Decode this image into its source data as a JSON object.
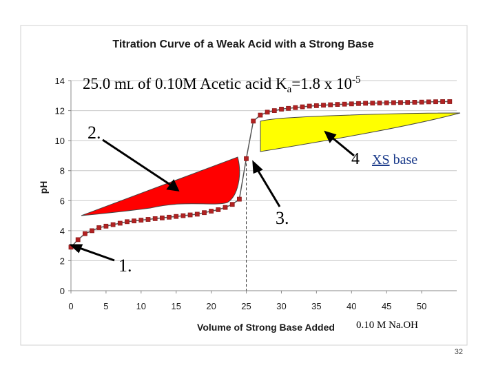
{
  "chart_data": {
    "type": "line",
    "title": "Titration Curve of a Weak Acid with a Strong Base",
    "subtitle": "25.0 mL of 0.10M Acetic acid Ka=1.8 x 10-5",
    "subtitle_parts": {
      "main": "25.0 m",
      "l": "L",
      "mid": " of 0.10M Acetic acid K",
      "sub": "a",
      "eq": "=1.8 x 10",
      "sup": "-5"
    },
    "xlabel": "Volume of Strong Base Added",
    "ylabel": "pH",
    "xlim": [
      0,
      55
    ],
    "ylim": [
      0,
      14
    ],
    "xticks": [
      0,
      5,
      10,
      15,
      20,
      25,
      30,
      35,
      40,
      45,
      50
    ],
    "yticks": [
      0,
      2,
      4,
      6,
      8,
      10,
      12,
      14
    ],
    "equivalence_x": 25,
    "series": [
      {
        "x": [
          0,
          1,
          2,
          3,
          4,
          5,
          6,
          7,
          8,
          9,
          10,
          11,
          12,
          13,
          14,
          15,
          16,
          17,
          18,
          19,
          20,
          21,
          22,
          23,
          24,
          25,
          26,
          27,
          28,
          29,
          30,
          31,
          32,
          33,
          34,
          35,
          36,
          37,
          38,
          39,
          40,
          41,
          42,
          43,
          44,
          45,
          46,
          47,
          48,
          49,
          50,
          51,
          52,
          53,
          54
        ],
        "y": [
          2.9,
          3.4,
          3.8,
          4.0,
          4.2,
          4.3,
          4.4,
          4.5,
          4.6,
          4.65,
          4.7,
          4.75,
          4.8,
          4.85,
          4.9,
          4.95,
          5.0,
          5.05,
          5.1,
          5.2,
          5.3,
          5.4,
          5.55,
          5.75,
          6.1,
          8.8,
          11.3,
          11.7,
          11.9,
          12.0,
          12.1,
          12.15,
          12.2,
          12.25,
          12.3,
          12.33,
          12.36,
          12.39,
          12.41,
          12.43,
          12.45,
          12.47,
          12.49,
          12.5,
          12.51,
          12.52,
          12.53,
          12.54,
          12.55,
          12.56,
          12.57,
          12.58,
          12.59,
          12.6,
          12.6
        ]
      }
    ],
    "annotations": {
      "a1": "1.",
      "a2": "2.",
      "a3": "3.",
      "a4": "4",
      "xs": "XS",
      "base": " base",
      "naoh": "0.10 M Na.OH"
    },
    "colors": {
      "series": "#8b1a1a",
      "marker": "#b22222",
      "red_region": "#ff0000",
      "yellow_region": "#ffff00"
    }
  },
  "slide_number": "32"
}
